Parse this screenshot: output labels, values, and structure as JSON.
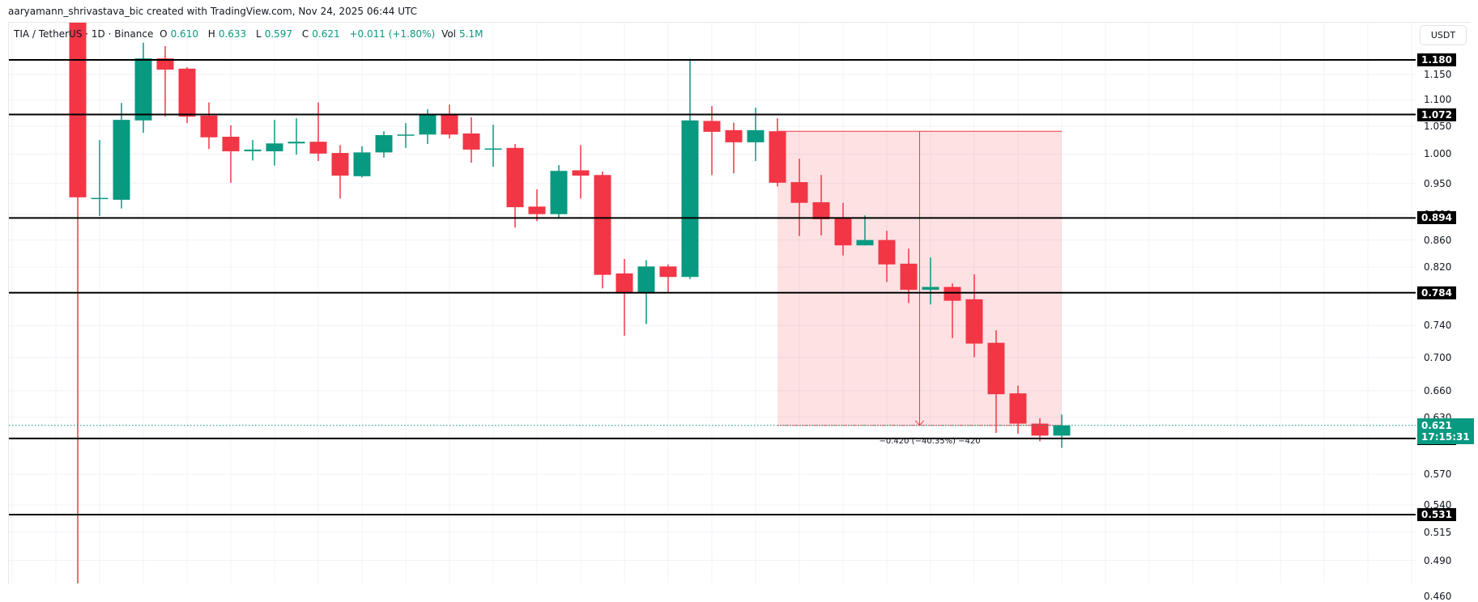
{
  "header": {
    "credit": "aaryamann_shrivastava_bic created with TradingView.com, Nov 24, 2025 06:44 UTC"
  },
  "legend": {
    "symbol": "TIA / TetherUS · 1D · Binance",
    "o_label": "O",
    "o_value": "0.610",
    "h_label": "H",
    "h_value": "0.633",
    "l_label": "L",
    "l_value": "0.597",
    "c_label": "C",
    "c_value": "0.621",
    "change": "+0.011 (+1.80%)",
    "vol_label": "Vol",
    "vol_value": "5.1M"
  },
  "currency_button": "USDT",
  "colors": {
    "up": "#089981",
    "down": "#F23645",
    "level_line": "#000000",
    "measure_fill": "rgba(242,54,69,0.15)",
    "measure_line": "#F23645",
    "grid": "#F0F3FA"
  },
  "price_tag": {
    "price": "0.621",
    "countdown": "17:15:31"
  },
  "measure": {
    "label": "−0.420 (−40.35%) −420",
    "from_price": 1.041,
    "to_price": 0.621,
    "start_index": 32,
    "end_index": 45
  },
  "chart_data": {
    "type": "candlestick",
    "title": "TIA / TetherUS · 1D · Binance",
    "scale": "log",
    "ylim": [
      0.46,
      1.26
    ],
    "y_ticks": [
      "1.150",
      "1.100",
      "1.050",
      "1.000",
      "0.950",
      "0.900",
      "0.860",
      "0.820",
      "0.740",
      "0.700",
      "0.660",
      "0.630",
      "0.570",
      "0.540",
      "0.515",
      "0.490",
      "0.460"
    ],
    "levels": [
      1.18,
      1.072,
      0.894,
      0.784,
      0.607,
      0.531
    ],
    "last_price": 0.621,
    "candles": [
      {
        "o": 1.3,
        "h": 1.3,
        "l": 0.45,
        "c": 0.927
      },
      {
        "o": 0.925,
        "h": 1.025,
        "l": 0.897,
        "c": 0.926
      },
      {
        "o": 0.923,
        "h": 1.094,
        "l": 0.909,
        "c": 1.062
      },
      {
        "o": 1.061,
        "h": 1.216,
        "l": 1.038,
        "c": 1.183
      },
      {
        "o": 1.183,
        "h": 1.209,
        "l": 1.068,
        "c": 1.16
      },
      {
        "o": 1.162,
        "h": 1.165,
        "l": 1.056,
        "c": 1.068
      },
      {
        "o": 1.07,
        "h": 1.095,
        "l": 1.009,
        "c": 1.03
      },
      {
        "o": 1.031,
        "h": 1.052,
        "l": 0.951,
        "c": 1.005
      },
      {
        "o": 1.005,
        "h": 1.025,
        "l": 0.989,
        "c": 1.008
      },
      {
        "o": 1.005,
        "h": 1.062,
        "l": 0.98,
        "c": 1.019
      },
      {
        "o": 1.019,
        "h": 1.065,
        "l": 0.999,
        "c": 1.022
      },
      {
        "o": 1.022,
        "h": 1.095,
        "l": 0.988,
        "c": 1.001
      },
      {
        "o": 1.002,
        "h": 1.016,
        "l": 0.925,
        "c": 0.963
      },
      {
        "o": 0.962,
        "h": 1.014,
        "l": 0.96,
        "c": 1.003
      },
      {
        "o": 1.003,
        "h": 1.041,
        "l": 0.994,
        "c": 1.034
      },
      {
        "o": 1.034,
        "h": 1.056,
        "l": 1.011,
        "c": 1.035
      },
      {
        "o": 1.035,
        "h": 1.082,
        "l": 1.018,
        "c": 1.071
      },
      {
        "o": 1.073,
        "h": 1.091,
        "l": 1.028,
        "c": 1.035
      },
      {
        "o": 1.037,
        "h": 1.067,
        "l": 0.985,
        "c": 1.008
      },
      {
        "o": 1.009,
        "h": 1.053,
        "l": 0.978,
        "c": 1.01
      },
      {
        "o": 1.011,
        "h": 1.018,
        "l": 0.879,
        "c": 0.911
      },
      {
        "o": 0.912,
        "h": 0.94,
        "l": 0.889,
        "c": 0.9
      },
      {
        "o": 0.9,
        "h": 0.981,
        "l": 0.894,
        "c": 0.971
      },
      {
        "o": 0.972,
        "h": 1.016,
        "l": 0.925,
        "c": 0.963
      },
      {
        "o": 0.964,
        "h": 0.97,
        "l": 0.79,
        "c": 0.809
      },
      {
        "o": 0.811,
        "h": 0.832,
        "l": 0.727,
        "c": 0.783
      },
      {
        "o": 0.783,
        "h": 0.83,
        "l": 0.742,
        "c": 0.821
      },
      {
        "o": 0.821,
        "h": 0.824,
        "l": 0.783,
        "c": 0.806
      },
      {
        "o": 0.806,
        "h": 1.182,
        "l": 0.803,
        "c": 1.061
      },
      {
        "o": 1.06,
        "h": 1.088,
        "l": 0.964,
        "c": 1.04
      },
      {
        "o": 1.043,
        "h": 1.057,
        "l": 0.967,
        "c": 1.021
      },
      {
        "o": 1.021,
        "h": 1.085,
        "l": 0.988,
        "c": 1.043
      },
      {
        "o": 1.041,
        "h": 1.065,
        "l": 0.945,
        "c": 0.951
      },
      {
        "o": 0.952,
        "h": 0.992,
        "l": 0.866,
        "c": 0.918
      },
      {
        "o": 0.919,
        "h": 0.964,
        "l": 0.867,
        "c": 0.892
      },
      {
        "o": 0.893,
        "h": 0.918,
        "l": 0.837,
        "c": 0.852
      },
      {
        "o": 0.852,
        "h": 0.898,
        "l": 0.852,
        "c": 0.86
      },
      {
        "o": 0.86,
        "h": 0.874,
        "l": 0.799,
        "c": 0.824
      },
      {
        "o": 0.825,
        "h": 0.847,
        "l": 0.77,
        "c": 0.788
      },
      {
        "o": 0.788,
        "h": 0.834,
        "l": 0.768,
        "c": 0.792
      },
      {
        "o": 0.792,
        "h": 0.797,
        "l": 0.724,
        "c": 0.773
      },
      {
        "o": 0.775,
        "h": 0.81,
        "l": 0.7,
        "c": 0.717
      },
      {
        "o": 0.718,
        "h": 0.734,
        "l": 0.613,
        "c": 0.656
      },
      {
        "o": 0.657,
        "h": 0.666,
        "l": 0.612,
        "c": 0.623
      },
      {
        "o": 0.623,
        "h": 0.629,
        "l": 0.604,
        "c": 0.61
      },
      {
        "o": 0.61,
        "h": 0.633,
        "l": 0.597,
        "c": 0.621
      }
    ]
  }
}
